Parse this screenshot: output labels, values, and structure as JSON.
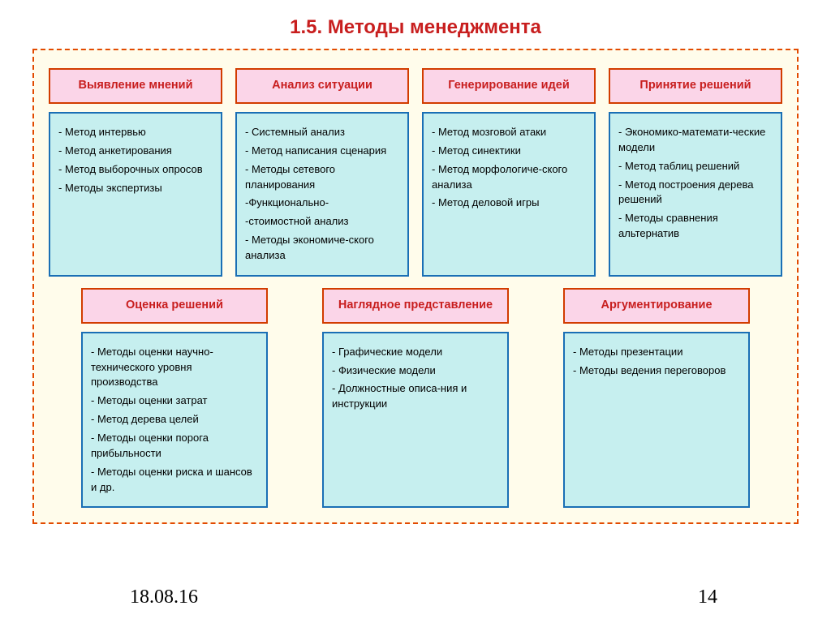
{
  "title": {
    "text": "1.5. Методы менеджмента",
    "color": "#c81e1e",
    "fontsize": 24
  },
  "outer_box": {
    "border_color": "#e24a00",
    "background": "#fffceb"
  },
  "header_style": {
    "border_color": "#d23c00",
    "background": "#fbd5e8",
    "text_color": "#c81e1e"
  },
  "body_style": {
    "border_color": "#1a6fb5",
    "background": "#c6efef",
    "text_color": "#000000"
  },
  "row1": [
    {
      "header": "Выявление мнений",
      "items": [
        "- Метод интервью",
        "- Метод анкетирования",
        "- Метод выборочных опросов",
        "- Методы экспертизы"
      ]
    },
    {
      "header": "Анализ ситуации",
      "items": [
        "- Системный анализ",
        "- Метод написания сценария",
        "- Методы сетевого планирования",
        "-Функционально-",
        "-стоимостной анализ",
        "- Методы экономиче-ского анализа"
      ]
    },
    {
      "header": "Генерирование идей",
      "items": [
        "- Метод мозговой атаки",
        "- Метод синектики",
        "- Метод морфологиче-ского анализа",
        "- Метод деловой игры"
      ]
    },
    {
      "header": "Принятие решений",
      "items": [
        "- Экономико-математи-ческие модели",
        "- Метод таблиц решений",
        "- Метод построения дерева решений",
        "- Методы сравнения альтернатив"
      ]
    }
  ],
  "row2": [
    {
      "header": "Оценка решений",
      "items": [
        "- Методы оценки научно-технического уровня производства",
        "- Методы оценки затрат",
        "- Метод дерева целей",
        "- Методы оценки порога прибыльности",
        "- Методы оценки риска и шансов и др."
      ]
    },
    {
      "header": "Наглядное представление",
      "items": [
        "- Графические модели",
        "- Физические модели",
        "- Должностные описа-ния и инструкции"
      ]
    },
    {
      "header": "Аргументирование",
      "items": [
        "- Методы презентации",
        "- Методы ведения переговоров"
      ]
    }
  ],
  "footer": {
    "date": "18.08.16",
    "page": "14"
  }
}
